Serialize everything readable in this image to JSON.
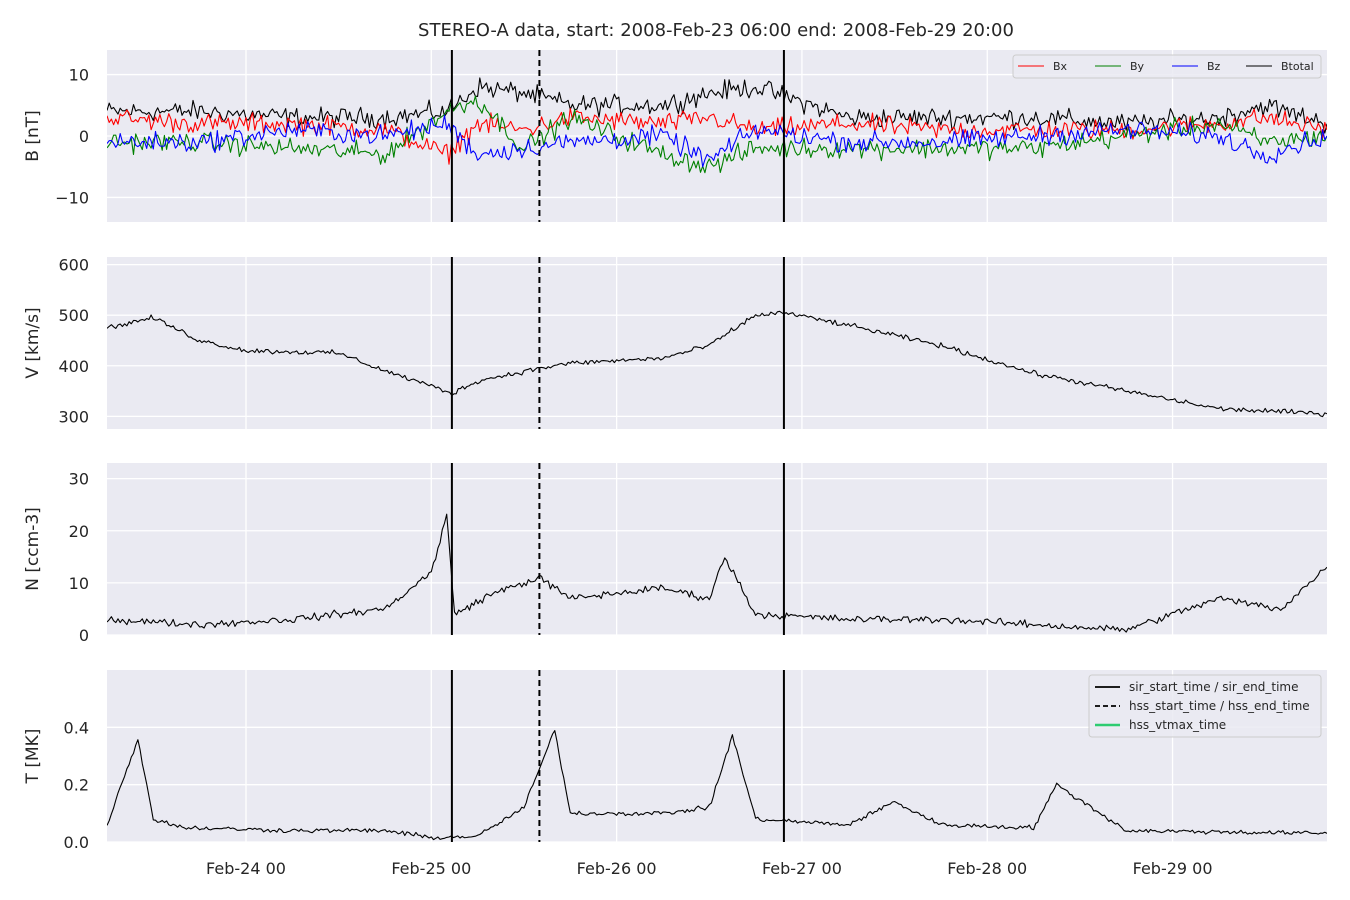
{
  "chart_data": {
    "type": "line",
    "title": "STEREO-A data, start: 2008-Feb-23 06:00  end: 2008-Feb-29 20:00",
    "x_start": "2008-02-23T06:00",
    "x_end": "2008-02-29T20:00",
    "x_tick_labels": [
      "Feb-24 00",
      "Feb-25 00",
      "Feb-26 00",
      "Feb-27 00",
      "Feb-28 00",
      "Feb-29 00"
    ],
    "x_ticks": [
      "2008-02-24T00:00",
      "2008-02-25T00:00",
      "2008-02-26T00:00",
      "2008-02-27T00:00",
      "2008-02-28T00:00",
      "2008-02-29T00:00"
    ],
    "grid": true,
    "event_lines": {
      "sir_start_time": "2008-02-25T02:40",
      "hss_start_time": "2008-02-25T14:00",
      "sir_end_time": "2008-02-26T21:40"
    },
    "colors": {
      "background": "#eaeaf2",
      "grid": "#ffffff",
      "Bx": "#ff0000",
      "By": "#008000",
      "Bz": "#0000ff",
      "Btotal": "#000000",
      "hss_vtmax": "#2ecc71"
    },
    "panels": [
      {
        "name": "B",
        "ylabel": "B [nT]",
        "ylim": [
          -14,
          14
        ],
        "yticks": [
          -10,
          0,
          10
        ],
        "ytick_labels": [
          "−10",
          "0",
          "10"
        ],
        "legend": {
          "placement": "top-right",
          "entries": [
            "Bx",
            "By",
            "Bz",
            "Btotal"
          ]
        },
        "series": [
          {
            "name": "Btotal",
            "x": [
              "2008-02-23T06:00",
              "2008-02-23T18:00",
              "2008-02-24T06:00",
              "2008-02-24T18:00",
              "2008-02-25T02:00",
              "2008-02-25T06:00",
              "2008-02-25T12:00",
              "2008-02-25T18:00",
              "2008-02-26T06:00",
              "2008-02-26T12:00",
              "2008-02-26T18:00",
              "2008-02-27T06:00",
              "2008-02-27T18:00",
              "2008-02-28T06:00",
              "2008-02-28T18:00",
              "2008-02-29T06:00",
              "2008-02-29T12:00",
              "2008-02-29T20:00"
            ],
            "values": [
              4,
              4,
              3,
              3,
              4,
              8,
              7,
              5,
              5,
              7,
              8,
              3,
              3,
              3,
              2,
              3,
              5,
              2
            ]
          },
          {
            "name": "Bx",
            "x": [
              "2008-02-23T06:00",
              "2008-02-23T18:00",
              "2008-02-24T06:00",
              "2008-02-24T18:00",
              "2008-02-25T02:00",
              "2008-02-25T06:00",
              "2008-02-25T12:00",
              "2008-02-25T18:00",
              "2008-02-26T06:00",
              "2008-02-26T12:00",
              "2008-02-26T18:00",
              "2008-02-27T06:00",
              "2008-02-27T18:00",
              "2008-02-28T06:00",
              "2008-02-28T18:00",
              "2008-02-29T06:00",
              "2008-02-29T12:00",
              "2008-02-29T20:00"
            ],
            "values": [
              3,
              2,
              2,
              1,
              -3,
              2,
              1,
              3,
              2,
              3,
              1,
              2,
              1,
              1,
              1,
              2,
              3,
              1
            ]
          },
          {
            "name": "By",
            "x": [
              "2008-02-23T06:00",
              "2008-02-23T18:00",
              "2008-02-24T06:00",
              "2008-02-24T18:00",
              "2008-02-25T02:00",
              "2008-02-25T06:00",
              "2008-02-25T12:00",
              "2008-02-25T18:00",
              "2008-02-26T06:00",
              "2008-02-26T12:00",
              "2008-02-26T18:00",
              "2008-02-27T06:00",
              "2008-02-27T18:00",
              "2008-02-28T06:00",
              "2008-02-28T18:00",
              "2008-02-29T06:00",
              "2008-02-29T12:00",
              "2008-02-29T20:00"
            ],
            "values": [
              -1,
              -1,
              -2,
              -3,
              4,
              6,
              -2,
              3,
              -3,
              -5,
              -2,
              -2,
              -2,
              -2,
              0,
              2,
              -1,
              0
            ]
          },
          {
            "name": "Bz",
            "x": [
              "2008-02-23T06:00",
              "2008-02-23T18:00",
              "2008-02-24T06:00",
              "2008-02-24T18:00",
              "2008-02-25T02:00",
              "2008-02-25T06:00",
              "2008-02-25T12:00",
              "2008-02-25T18:00",
              "2008-02-26T06:00",
              "2008-02-26T12:00",
              "2008-02-26T18:00",
              "2008-02-27T06:00",
              "2008-02-27T18:00",
              "2008-02-28T06:00",
              "2008-02-28T18:00",
              "2008-02-29T06:00",
              "2008-02-29T12:00",
              "2008-02-29T20:00"
            ],
            "values": [
              -1,
              -1,
              1,
              0,
              2,
              -3,
              -2,
              -1,
              0,
              -4,
              1,
              -1,
              -1,
              0,
              1,
              0,
              -3,
              0
            ]
          }
        ]
      },
      {
        "name": "V",
        "ylabel": "V [km/s]",
        "ylim": [
          275,
          615
        ],
        "yticks": [
          300,
          400,
          500,
          600
        ],
        "ytick_labels": [
          "300",
          "400",
          "500",
          "600"
        ],
        "series": [
          {
            "name": "V",
            "x": [
              "2008-02-23T06:00",
              "2008-02-23T12:00",
              "2008-02-23T18:00",
              "2008-02-24T00:00",
              "2008-02-24T12:00",
              "2008-02-24T18:00",
              "2008-02-25T00:00",
              "2008-02-25T02:40",
              "2008-02-25T06:00",
              "2008-02-25T14:00",
              "2008-02-25T18:00",
              "2008-02-26T06:00",
              "2008-02-26T12:00",
              "2008-02-26T18:00",
              "2008-02-26T21:40",
              "2008-02-27T06:00",
              "2008-02-27T18:00",
              "2008-02-28T06:00",
              "2008-02-28T18:00",
              "2008-02-29T06:00",
              "2008-02-29T20:00"
            ],
            "values": [
              475,
              495,
              450,
              430,
              425,
              390,
              360,
              345,
              370,
              395,
              405,
              415,
              440,
              500,
              505,
              480,
              440,
              385,
              350,
              315,
              305
            ]
          }
        ]
      },
      {
        "name": "N",
        "ylabel": "N [ccm-3]",
        "ylim": [
          0,
          33
        ],
        "yticks": [
          0,
          10,
          20,
          30
        ],
        "ytick_labels": [
          "0",
          "10",
          "20",
          "30"
        ],
        "series": [
          {
            "name": "N",
            "x": [
              "2008-02-23T06:00",
              "2008-02-23T18:00",
              "2008-02-24T06:00",
              "2008-02-24T18:00",
              "2008-02-25T00:00",
              "2008-02-25T02:00",
              "2008-02-25T03:00",
              "2008-02-25T08:00",
              "2008-02-25T14:00",
              "2008-02-25T18:00",
              "2008-02-26T06:00",
              "2008-02-26T12:00",
              "2008-02-26T14:00",
              "2008-02-26T18:00",
              "2008-02-27T06:00",
              "2008-02-27T18:00",
              "2008-02-28T06:00",
              "2008-02-28T18:00",
              "2008-02-29T06:00",
              "2008-02-29T14:00",
              "2008-02-29T20:00"
            ],
            "values": [
              3,
              2,
              3,
              5,
              12,
              23,
              4,
              8,
              11,
              7,
              9,
              7,
              15,
              4,
              3,
              3,
              2,
              1,
              7,
              5,
              13
            ]
          }
        ]
      },
      {
        "name": "T",
        "ylabel": "T [MK]",
        "ylim": [
          0,
          0.6
        ],
        "yticks": [
          0.0,
          0.2,
          0.4
        ],
        "ytick_labels": [
          "0.0",
          "0.2",
          "0.4"
        ],
        "legend": {
          "placement": "top-right",
          "entries": [
            "sir_start_time / sir_end_time",
            "hss_start_time / hss_end_time",
            "hss_vtmax_time"
          ]
        },
        "series": [
          {
            "name": "T",
            "x": [
              "2008-02-23T06:00",
              "2008-02-23T10:00",
              "2008-02-23T12:00",
              "2008-02-23T16:00",
              "2008-02-24T06:00",
              "2008-02-24T18:00",
              "2008-02-25T00:00",
              "2008-02-25T06:00",
              "2008-02-25T12:00",
              "2008-02-25T16:00",
              "2008-02-25T18:00",
              "2008-02-26T06:00",
              "2008-02-26T12:00",
              "2008-02-26T15:00",
              "2008-02-26T18:00",
              "2008-02-27T06:00",
              "2008-02-27T12:00",
              "2008-02-27T18:00",
              "2008-02-28T06:00",
              "2008-02-28T09:00",
              "2008-02-28T18:00",
              "2008-02-29T20:00"
            ],
            "values": [
              0.06,
              0.36,
              0.08,
              0.05,
              0.04,
              0.04,
              0.015,
              0.02,
              0.12,
              0.39,
              0.1,
              0.1,
              0.12,
              0.37,
              0.08,
              0.06,
              0.14,
              0.06,
              0.05,
              0.2,
              0.04,
              0.03
            ]
          }
        ]
      }
    ]
  }
}
